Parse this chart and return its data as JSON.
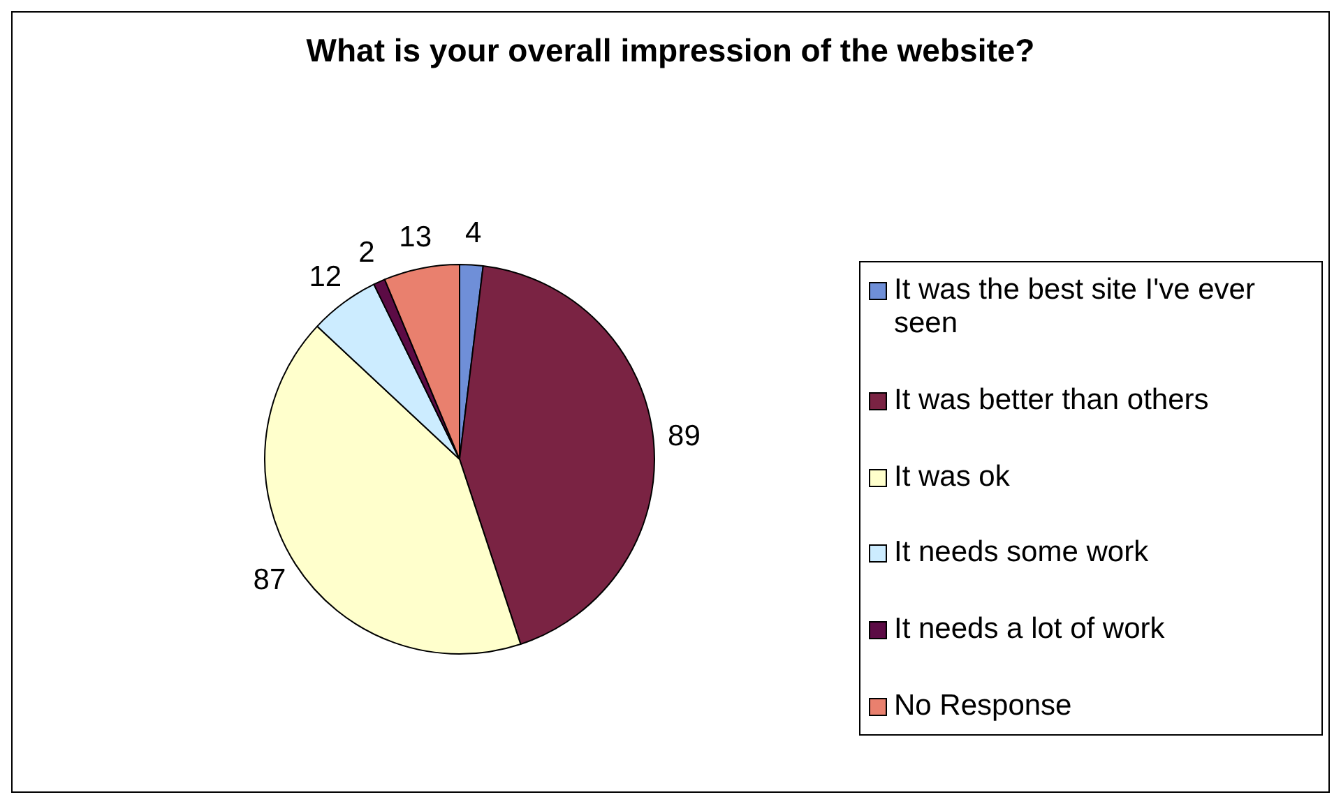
{
  "chart_data": {
    "type": "pie",
    "title": "What is your overall impression of the website?",
    "categories": [
      "It was the best site I've ever seen",
      "It was better than others",
      "It was ok",
      "It needs some work",
      "It needs a lot of work",
      "No Response"
    ],
    "values": [
      4,
      89,
      87,
      12,
      2,
      13
    ],
    "colors": [
      "#6f8fd8",
      "#7a2343",
      "#ffffcc",
      "#ccecff",
      "#5c0b45",
      "#e9806e"
    ],
    "data_labels": true,
    "legend": "right"
  }
}
